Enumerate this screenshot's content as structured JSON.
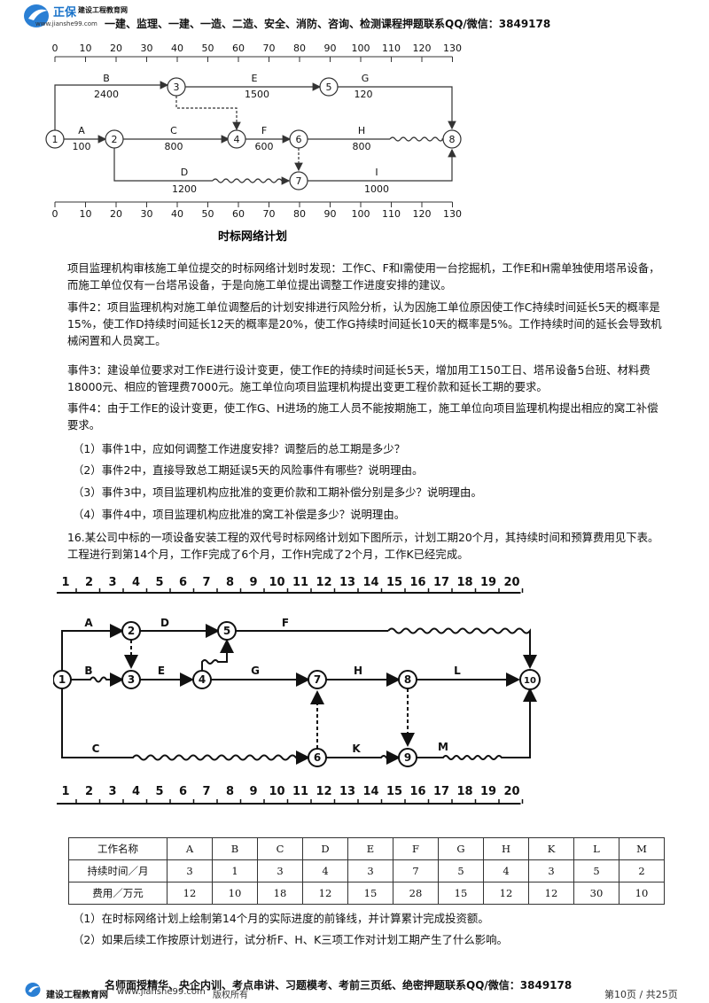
{
  "header": {
    "brand": "正保",
    "brand_sub": "建设工程教育网",
    "url": "www.jianshe99.com",
    "courses": "一建、监理、一建、一造、二造、安全、消防、咨询、检测课程押题联系QQ/微信：3849178"
  },
  "net1": {
    "ticks": [
      "0",
      "10",
      "20",
      "30",
      "40",
      "50",
      "60",
      "70",
      "80",
      "90",
      "100",
      "110",
      "120",
      "130"
    ],
    "caption": "时标网络计划",
    "nodes": [
      "1",
      "2",
      "3",
      "4",
      "5",
      "6",
      "7",
      "8"
    ],
    "activities": [
      {
        "name": "B",
        "dur": "2400"
      },
      {
        "name": "E",
        "dur": "1500"
      },
      {
        "name": "G",
        "dur": "120"
      },
      {
        "name": "A",
        "dur": "100"
      },
      {
        "name": "C",
        "dur": "800"
      },
      {
        "name": "F",
        "dur": "600"
      },
      {
        "name": "H",
        "dur": "800"
      },
      {
        "name": "D",
        "dur": "1200"
      },
      {
        "name": "I",
        "dur": "1000"
      }
    ]
  },
  "text": {
    "p1": "项目监理机构审核施工单位提交的时标网络计划时发现：工作C、F和I需使用一台挖掘机，工作E和H需单独使用塔吊设备，而施工单位仅有一台塔吊设备，于是向施工单位提出调整工作进度安排的建议。",
    "p2": "事件2：项目监理机构对施工单位调整后的计划安排进行风险分析，认为因施工单位原因使工作C持续时间延长5天的概率是15%，使工作D持续时间延长12天的概率是20%，使工作G持续时间延长10天的概率是5%。工作持续时间的延长会导致机械闲置和人员窝工。",
    "p3": "事件3：建设单位要求对工作E进行设计变更，使工作E的持续时间延长5天，增加用工150工日、塔吊设备5台班、材料费18000元、相应的管理费7000元。施工单位向项目监理机构提出变更工程价款和延长工期的要求。",
    "p4": "事件4：由于工作E的设计变更，使工作G、H进场的施工人员不能按期施工，施工单位向项目监理机构提出相应的窝工补偿要求。",
    "q1": "（1）事件1中，应如何调整工作进度安排？调整后的总工期是多少？",
    "q2": "（2）事件2中，直接导致总工期延误5天的风险事件有哪些？说明理由。",
    "q3": "（3）事件3中，项目监理机构应批准的变更价款和工期补偿分别是多少？说明理由。",
    "q4": "（4）事件4中，项目监理机构应批准的窝工补偿是多少？说明理由。",
    "p16": "16.某公司中标的一项设备安装工程的双代号时标网络计划如下图所示，计划工期20个月，其持续时间和预算费用见下表。工程进行到第14个月，工作F完成了6个月，工作H完成了2个月，工作K已经完成。",
    "q5": "（1）在时标网络计划上绘制第14个月的实际进度的前锋线，并计算累计完成投资额。",
    "q6": "（2）如果后续工作按原计划进行，试分析F、H、K三项工作对计划工期产生了什么影响。"
  },
  "net2": {
    "ticks": [
      "1",
      "2",
      "3",
      "4",
      "5",
      "6",
      "7",
      "8",
      "9",
      "10",
      "11",
      "12",
      "13",
      "14",
      "15",
      "16",
      "17",
      "18",
      "19",
      "20"
    ],
    "nodes": [
      "1",
      "2",
      "3",
      "4",
      "5",
      "6",
      "7",
      "8",
      "9",
      "10"
    ],
    "labels": [
      "A",
      "D",
      "F",
      "B",
      "E",
      "G",
      "H",
      "L",
      "C",
      "K",
      "M"
    ]
  },
  "table": {
    "rows": [
      [
        "工作名称",
        "A",
        "B",
        "C",
        "D",
        "E",
        "F",
        "G",
        "H",
        "K",
        "L",
        "M"
      ],
      [
        "持续时间／月",
        "3",
        "1",
        "3",
        "4",
        "3",
        "7",
        "5",
        "4",
        "3",
        "5",
        "2"
      ],
      [
        "费用／万元",
        "12",
        "10",
        "18",
        "12",
        "15",
        "28",
        "15",
        "12",
        "12",
        "30",
        "10"
      ]
    ]
  },
  "footer": {
    "promo": "名师面授精华、央企内训、考点串讲、习题模考、考前三页纸、绝密押题联系QQ/微信：3849178",
    "brand": "建设工程教育网",
    "url": "www.jianshe99.com",
    "rights": "版权所有",
    "page": "第10页 / 共25页"
  }
}
